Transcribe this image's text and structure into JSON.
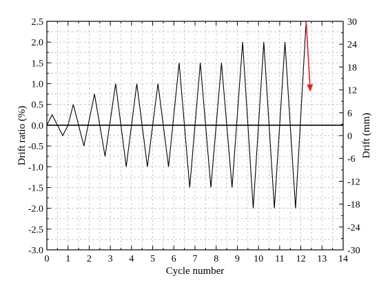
{
  "chart_data": {
    "type": "line",
    "title": "",
    "xlabel": "Cycle number",
    "ylabel": "Drift ratio (%)",
    "y2label": "Drift (mm)",
    "xlim": [
      0,
      14
    ],
    "ylim": [
      -3.0,
      2.5
    ],
    "y2lim": [
      -30,
      30
    ],
    "x_ticks": [
      0,
      1,
      2,
      3,
      4,
      5,
      6,
      7,
      8,
      9,
      10,
      11,
      12,
      13,
      14
    ],
    "y_ticks": [
      "-3.0",
      "-2.5",
      "-2.0",
      "-1.5",
      "-1.0",
      "-0.5",
      "0.0",
      "0.5",
      "1.0",
      "1.5",
      "2.0",
      "2.5"
    ],
    "y2_ticks": [
      "-30",
      "-24",
      "-18",
      "-12",
      "-6",
      "0",
      "6",
      "12",
      "18",
      "24",
      "30"
    ],
    "grid": true,
    "zero_line": true,
    "series": [
      {
        "x": [
          0,
          0.25,
          0.5,
          0.75,
          1.0,
          1.25,
          1.75,
          2.25,
          2.75,
          3.25,
          3.75,
          4.25,
          4.75,
          5.25,
          5.75,
          6.25,
          6.75,
          7.25,
          7.75,
          8.25,
          8.75,
          9.25,
          9.75,
          10.25,
          10.75,
          11.25,
          11.75,
          12.25
        ],
        "y": [
          0,
          0.25,
          0,
          -0.25,
          0,
          0.5,
          -0.5,
          0.75,
          -0.75,
          1.0,
          -1.0,
          1.0,
          -1.0,
          1.0,
          -1.0,
          1.5,
          -1.5,
          1.5,
          -1.5,
          1.5,
          -1.5,
          2.0,
          -2.0,
          2.0,
          -2.0,
          2.0,
          -2.0,
          2.5
        ],
        "color": "#000000"
      }
    ],
    "annotations": [
      {
        "type": "arrow",
        "x_from": 12.25,
        "y_from": 2.5,
        "x_to": 12.45,
        "y_to": 0.8,
        "color": "#e8201e"
      }
    ]
  }
}
